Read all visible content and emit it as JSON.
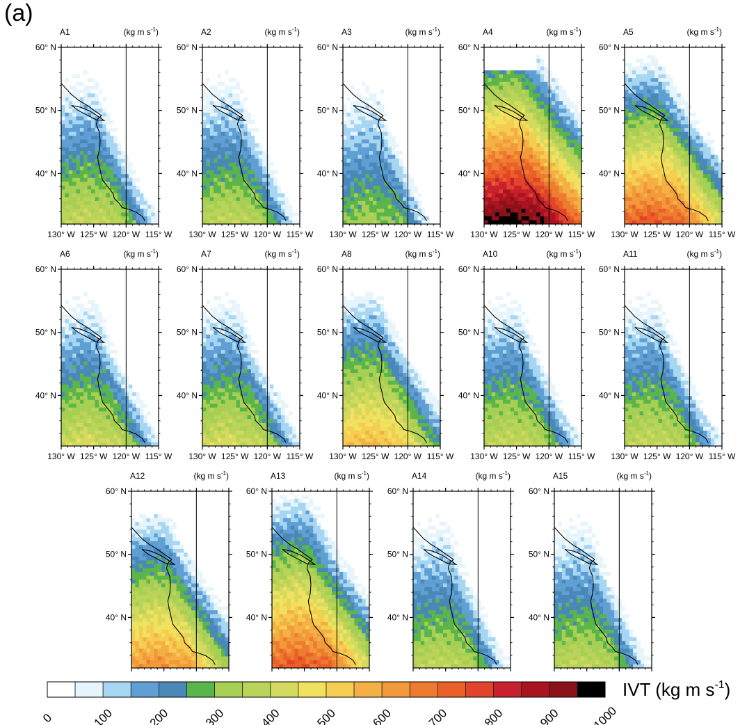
{
  "figure": {
    "panel_label": "(a)"
  },
  "chart_data": {
    "type": "heatmap",
    "variable": "IVT",
    "units_label": "(kg m s",
    "units_exp": "-1",
    "units_close": ")",
    "lat_ticks": [
      {
        "value": 40,
        "label": "40° N"
      },
      {
        "value": 50,
        "label": "50° N"
      },
      {
        "value": 60,
        "label": "60° N"
      }
    ],
    "lon_ticks": [
      {
        "value": -130,
        "label": "130° W"
      },
      {
        "value": -125,
        "label": "125° W"
      },
      {
        "value": -120,
        "label": "120° W"
      },
      {
        "value": -115,
        "label": "115° W"
      }
    ],
    "lat_range": [
      32,
      60
    ],
    "lon_range": [
      -130,
      -115
    ],
    "panels": [
      {
        "name": "A1",
        "row": 0,
        "col": 0,
        "intensity": 0.4,
        "north_bias": 0.0,
        "white_cap": true
      },
      {
        "name": "A2",
        "row": 0,
        "col": 1,
        "intensity": 0.38,
        "north_bias": 0.0,
        "white_cap": true
      },
      {
        "name": "A3",
        "row": 0,
        "col": 2,
        "intensity": 0.32,
        "north_bias": -0.05,
        "white_cap": false
      },
      {
        "name": "A4",
        "row": 0,
        "col": 3,
        "intensity": 0.95,
        "north_bias": 0.25,
        "white_cap": true
      },
      {
        "name": "A5",
        "row": 0,
        "col": 4,
        "intensity": 0.72,
        "north_bias": 0.1,
        "white_cap": false
      },
      {
        "name": "A6",
        "row": 1,
        "col": 0,
        "intensity": 0.42,
        "north_bias": 0.0,
        "white_cap": false
      },
      {
        "name": "A7",
        "row": 1,
        "col": 1,
        "intensity": 0.42,
        "north_bias": 0.0,
        "white_cap": false
      },
      {
        "name": "A8",
        "row": 1,
        "col": 2,
        "intensity": 0.55,
        "north_bias": 0.05,
        "white_cap": true
      },
      {
        "name": "A10",
        "row": 1,
        "col": 3,
        "intensity": 0.4,
        "north_bias": 0.0,
        "white_cap": false
      },
      {
        "name": "A11",
        "row": 1,
        "col": 4,
        "intensity": 0.4,
        "north_bias": 0.0,
        "white_cap": false
      },
      {
        "name": "A12",
        "row": 2,
        "col": 0,
        "intensity": 0.62,
        "north_bias": 0.05,
        "white_cap": true
      },
      {
        "name": "A13",
        "row": 2,
        "col": 1,
        "intensity": 0.72,
        "north_bias": 0.15,
        "white_cap": false
      },
      {
        "name": "A14",
        "row": 2,
        "col": 2,
        "intensity": 0.38,
        "north_bias": 0.0,
        "white_cap": false
      },
      {
        "name": "A15",
        "row": 2,
        "col": 3,
        "intensity": 0.38,
        "north_bias": 0.0,
        "white_cap": false
      }
    ],
    "colorbar": {
      "title": "IVT (kg m s",
      "title_exp": "-1",
      "title_close": ")",
      "colors": [
        "#ffffff",
        "#e6f4fc",
        "#a6d6f2",
        "#5f9fd4",
        "#4a88b8",
        "#5ab54a",
        "#a6cf54",
        "#bad45a",
        "#d4da5e",
        "#f0e25e",
        "#f5cd50",
        "#f5b045",
        "#f29a3a",
        "#ee7c30",
        "#ea6028",
        "#e2442a",
        "#c8202e",
        "#a8141f",
        "#8a1218",
        "#000000"
      ],
      "tick_labels": [
        "0",
        "100",
        "200",
        "300",
        "400",
        "500",
        "600",
        "700",
        "800",
        "900",
        "1000"
      ]
    }
  }
}
